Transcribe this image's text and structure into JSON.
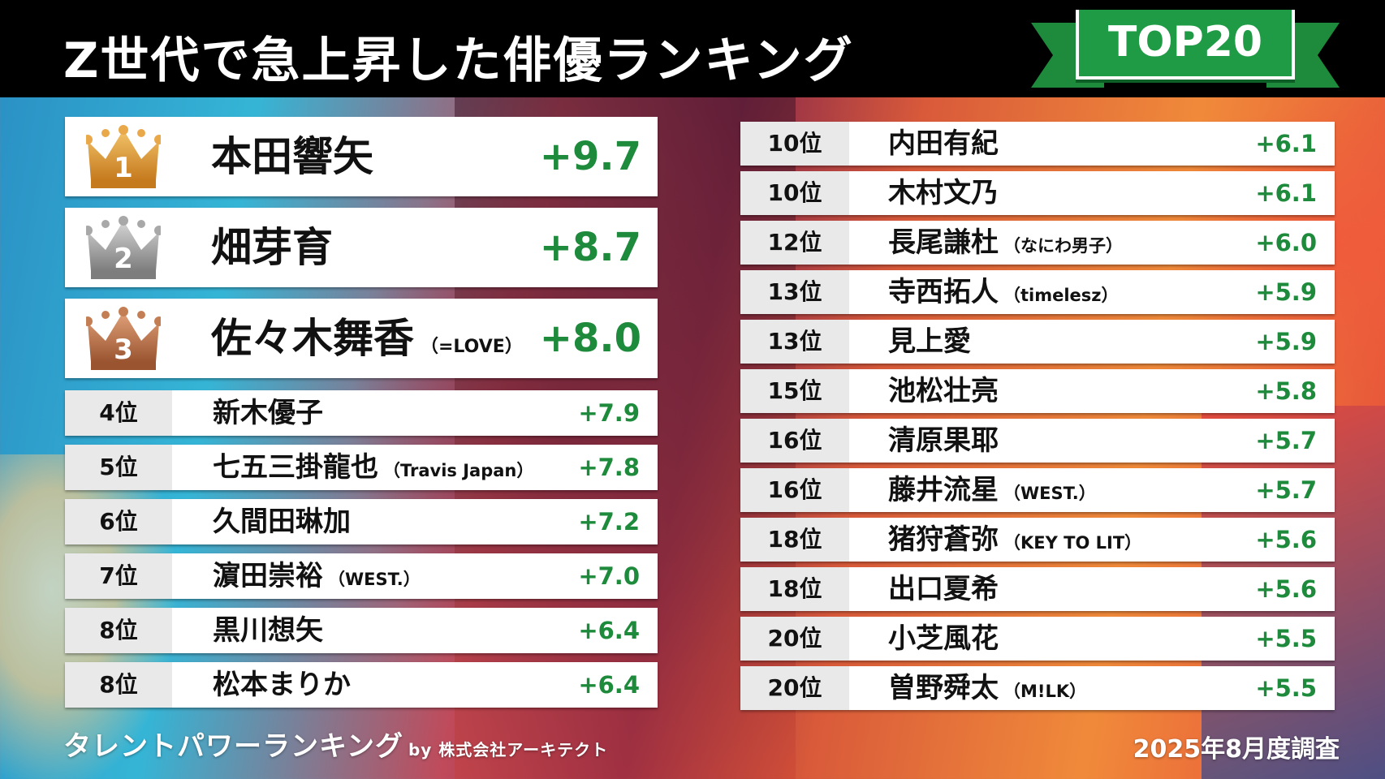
{
  "title": "Z世代で急上昇した俳優ランキング",
  "badge": "TOP20",
  "colors": {
    "accent_green": "#1e8a3c",
    "gold": "#d98f2c",
    "silver": "#9a9a9a",
    "bronze": "#b46a3c"
  },
  "top3": [
    {
      "rank": "1",
      "name": "本田響矢",
      "group": "",
      "score": "+9.7",
      "crown": "gold-crown-icon"
    },
    {
      "rank": "2",
      "name": "畑芽育",
      "group": "",
      "score": "+8.7",
      "crown": "silver-crown-icon"
    },
    {
      "rank": "3",
      "name": "佐々木舞香",
      "group": "（=LOVE）",
      "score": "+8.0",
      "crown": "bronze-crown-icon"
    }
  ],
  "left_list": [
    {
      "rank": "4位",
      "name": "新木優子",
      "group": "",
      "score": "+7.9"
    },
    {
      "rank": "5位",
      "name": "七五三掛龍也",
      "group": "（Travis Japan）",
      "score": "+7.8"
    },
    {
      "rank": "6位",
      "name": "久間田琳加",
      "group": "",
      "score": "+7.2"
    },
    {
      "rank": "7位",
      "name": "濵田崇裕",
      "group": "（WEST.）",
      "score": "+7.0"
    },
    {
      "rank": "8位",
      "name": "黒川想矢",
      "group": "",
      "score": "+6.4"
    },
    {
      "rank": "8位",
      "name": "松本まりか",
      "group": "",
      "score": "+6.4"
    }
  ],
  "right_list": [
    {
      "rank": "10位",
      "name": "内田有紀",
      "group": "",
      "score": "+6.1"
    },
    {
      "rank": "10位",
      "name": "木村文乃",
      "group": "",
      "score": "+6.1"
    },
    {
      "rank": "12位",
      "name": "長尾謙杜",
      "group": "（なにわ男子）",
      "score": "+6.0"
    },
    {
      "rank": "13位",
      "name": "寺西拓人",
      "group": "（timelesz）",
      "score": "+5.9"
    },
    {
      "rank": "13位",
      "name": "見上愛",
      "group": "",
      "score": "+5.9"
    },
    {
      "rank": "15位",
      "name": "池松壮亮",
      "group": "",
      "score": "+5.8"
    },
    {
      "rank": "16位",
      "name": "清原果耶",
      "group": "",
      "score": "+5.7"
    },
    {
      "rank": "16位",
      "name": "藤井流星",
      "group": "（WEST.）",
      "score": "+5.7"
    },
    {
      "rank": "18位",
      "name": "猪狩蒼弥",
      "group": "（KEY TO LIT）",
      "score": "+5.6"
    },
    {
      "rank": "18位",
      "name": "出口夏希",
      "group": "",
      "score": "+5.6"
    },
    {
      "rank": "20位",
      "name": "小芝風花",
      "group": "",
      "score": "+5.5"
    },
    {
      "rank": "20位",
      "name": "曽野舜太",
      "group": "（M!LK）",
      "score": "+5.5"
    }
  ],
  "footer": {
    "logo": "タレントパワーランキング",
    "by": "by 株式会社アーキテクト",
    "date": "2025年8月度調査"
  }
}
